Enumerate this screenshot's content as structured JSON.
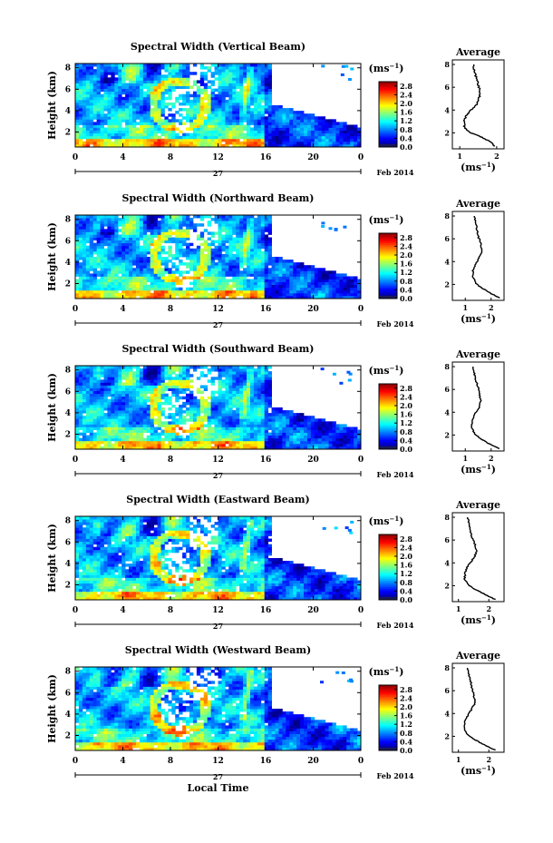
{
  "chart_data": [
    {
      "type": "heatmap",
      "title": "Spectral Width (Vertical Beam)",
      "ylabel": "Height (km)",
      "xlim": [
        0,
        24
      ],
      "ylim": [
        0.6,
        8.4
      ],
      "x_ticks": [
        "0",
        "4",
        "8",
        "12",
        "16",
        "20",
        "0"
      ],
      "y_ticks": [
        "2",
        "4",
        "6",
        "8"
      ],
      "date_center": "27",
      "date_label": "Feb 2014",
      "colorbar": {
        "unit": "(ms",
        "unit_sup": "−1",
        "unit_tail": ")",
        "ticks": [
          "0.0",
          "0.4",
          "0.8",
          "1.2",
          "1.6",
          "2.0",
          "2.4",
          "2.8"
        ],
        "range": [
          0,
          3
        ]
      },
      "average": {
        "title": "Average",
        "xlim": [
          0.8,
          2.2
        ],
        "ylim": [
          0.6,
          8.4
        ],
        "x_ticks": [
          "1",
          "2"
        ],
        "y_ticks": [
          "2",
          "4",
          "6",
          "8"
        ],
        "xlabel": "(ms",
        "xlabel_sup": "−1",
        "xlabel_tail": ")",
        "profile": [
          [
            1.95,
            0.8
          ],
          [
            1.85,
            1.2
          ],
          [
            1.6,
            1.6
          ],
          [
            1.3,
            2.0
          ],
          [
            1.12,
            2.5
          ],
          [
            1.12,
            3.0
          ],
          [
            1.18,
            3.5
          ],
          [
            1.3,
            4.0
          ],
          [
            1.45,
            4.5
          ],
          [
            1.52,
            5.0
          ],
          [
            1.55,
            5.6
          ],
          [
            1.5,
            6.2
          ],
          [
            1.45,
            6.8
          ],
          [
            1.4,
            7.4
          ],
          [
            1.38,
            8.0
          ]
        ]
      }
    },
    {
      "type": "heatmap",
      "title": "Spectral Width (Northward Beam)",
      "ylabel": "Height (km)",
      "xlim": [
        0,
        24
      ],
      "ylim": [
        0.6,
        8.4
      ],
      "x_ticks": [
        "0",
        "4",
        "8",
        "12",
        "16",
        "20",
        "0"
      ],
      "y_ticks": [
        "2",
        "4",
        "6",
        "8"
      ],
      "date_center": "27",
      "date_label": "Feb 2014",
      "colorbar": {
        "unit": "(ms",
        "unit_sup": "−1",
        "unit_tail": ")",
        "ticks": [
          "0.0",
          "0.4",
          "0.8",
          "1.2",
          "1.6",
          "2.0",
          "2.4",
          "2.8"
        ],
        "range": [
          0,
          3
        ]
      },
      "average": {
        "title": "Average",
        "xlim": [
          0.5,
          2.5
        ],
        "ylim": [
          0.6,
          8.4
        ],
        "x_ticks": [
          "1",
          "2"
        ],
        "y_ticks": [
          "2",
          "4",
          "6",
          "8"
        ],
        "xlabel": "(ms",
        "xlabel_sup": "−1",
        "xlabel_tail": ")",
        "profile": [
          [
            2.35,
            0.8
          ],
          [
            2.0,
            1.2
          ],
          [
            1.7,
            1.6
          ],
          [
            1.45,
            2.0
          ],
          [
            1.3,
            2.6
          ],
          [
            1.3,
            3.2
          ],
          [
            1.4,
            3.8
          ],
          [
            1.55,
            4.4
          ],
          [
            1.65,
            5.0
          ],
          [
            1.6,
            5.6
          ],
          [
            1.5,
            6.2
          ],
          [
            1.45,
            6.8
          ],
          [
            1.4,
            7.4
          ],
          [
            1.35,
            8.0
          ]
        ]
      }
    },
    {
      "type": "heatmap",
      "title": "Spectral Width (Southward Beam)",
      "ylabel": "Height (km)",
      "xlim": [
        0,
        24
      ],
      "ylim": [
        0.6,
        8.4
      ],
      "x_ticks": [
        "0",
        "4",
        "8",
        "12",
        "16",
        "20",
        "0"
      ],
      "y_ticks": [
        "2",
        "4",
        "6",
        "8"
      ],
      "date_center": "27",
      "date_label": "Feb 2014",
      "colorbar": {
        "unit": "(ms",
        "unit_sup": "−1",
        "unit_tail": ")",
        "ticks": [
          "0.0",
          "0.4",
          "0.8",
          "1.2",
          "1.6",
          "2.0",
          "2.4",
          "2.8"
        ],
        "range": [
          0,
          3
        ]
      },
      "average": {
        "title": "Average",
        "xlim": [
          0.5,
          2.5
        ],
        "ylim": [
          0.6,
          8.4
        ],
        "x_ticks": [
          "1",
          "2"
        ],
        "y_ticks": [
          "2",
          "4",
          "6",
          "8"
        ],
        "xlabel": "(ms",
        "xlabel_sup": "−1",
        "xlabel_tail": ")",
        "profile": [
          [
            2.3,
            0.8
          ],
          [
            1.95,
            1.2
          ],
          [
            1.65,
            1.6
          ],
          [
            1.4,
            2.0
          ],
          [
            1.25,
            2.6
          ],
          [
            1.25,
            3.2
          ],
          [
            1.35,
            3.8
          ],
          [
            1.55,
            4.4
          ],
          [
            1.6,
            5.0
          ],
          [
            1.55,
            5.6
          ],
          [
            1.5,
            6.2
          ],
          [
            1.4,
            6.8
          ],
          [
            1.35,
            7.4
          ],
          [
            1.3,
            8.0
          ]
        ]
      }
    },
    {
      "type": "heatmap",
      "title": "Spectral Width (Eastward Beam)",
      "ylabel": "Height (km)",
      "xlim": [
        0,
        24
      ],
      "ylim": [
        0.6,
        8.4
      ],
      "x_ticks": [
        "0",
        "4",
        "8",
        "12",
        "16",
        "20",
        "0"
      ],
      "y_ticks": [
        "2",
        "4",
        "6",
        "8"
      ],
      "date_center": "27",
      "date_label": "Feb 2014",
      "colorbar": {
        "unit": "(ms",
        "unit_sup": "−1",
        "unit_tail": ")",
        "ticks": [
          "0.0",
          "0.4",
          "0.8",
          "1.2",
          "1.6",
          "2.0",
          "2.4",
          "2.8"
        ],
        "range": [
          0,
          3
        ]
      },
      "average": {
        "title": "Average",
        "xlim": [
          0.8,
          2.5
        ],
        "ylim": [
          0.6,
          8.4
        ],
        "x_ticks": [
          "1",
          "2"
        ],
        "y_ticks": [
          "2",
          "4",
          "6",
          "8"
        ],
        "xlabel": "(ms",
        "xlabel_sup": "−1",
        "xlabel_tail": ")",
        "profile": [
          [
            2.2,
            0.8
          ],
          [
            1.9,
            1.2
          ],
          [
            1.6,
            1.6
          ],
          [
            1.35,
            2.0
          ],
          [
            1.2,
            2.6
          ],
          [
            1.22,
            3.2
          ],
          [
            1.32,
            3.8
          ],
          [
            1.5,
            4.4
          ],
          [
            1.6,
            5.0
          ],
          [
            1.55,
            5.6
          ],
          [
            1.45,
            6.2
          ],
          [
            1.4,
            6.8
          ],
          [
            1.35,
            7.4
          ],
          [
            1.3,
            8.0
          ]
        ]
      }
    },
    {
      "type": "heatmap",
      "title": "Spectral Width (Westward Beam)",
      "ylabel": "Height (km)",
      "xlabel": "Local Time",
      "xlim": [
        0,
        24
      ],
      "ylim": [
        0.6,
        8.4
      ],
      "x_ticks": [
        "0",
        "4",
        "8",
        "12",
        "16",
        "20",
        "0"
      ],
      "y_ticks": [
        "2",
        "4",
        "6",
        "8"
      ],
      "date_center": "27",
      "date_label": "Feb 2014",
      "colorbar": {
        "unit": "(ms",
        "unit_sup": "−1",
        "unit_tail": ")",
        "ticks": [
          "0.0",
          "0.4",
          "0.8",
          "1.2",
          "1.6",
          "2.0",
          "2.4",
          "2.8"
        ],
        "range": [
          0,
          3
        ]
      },
      "average": {
        "title": "Average",
        "xlim": [
          0.8,
          2.5
        ],
        "ylim": [
          0.6,
          8.4
        ],
        "x_ticks": [
          "1",
          "2"
        ],
        "y_ticks": [
          "2",
          "4",
          "6",
          "8"
        ],
        "xlabel": "(ms",
        "xlabel_sup": "−1",
        "xlabel_tail": ")",
        "profile": [
          [
            2.2,
            0.8
          ],
          [
            1.9,
            1.2
          ],
          [
            1.6,
            1.6
          ],
          [
            1.35,
            2.0
          ],
          [
            1.2,
            2.6
          ],
          [
            1.2,
            3.2
          ],
          [
            1.3,
            3.8
          ],
          [
            1.45,
            4.4
          ],
          [
            1.55,
            5.0
          ],
          [
            1.5,
            5.6
          ],
          [
            1.45,
            6.2
          ],
          [
            1.4,
            6.8
          ],
          [
            1.35,
            7.4
          ],
          [
            1.3,
            8.0
          ]
        ]
      }
    }
  ]
}
